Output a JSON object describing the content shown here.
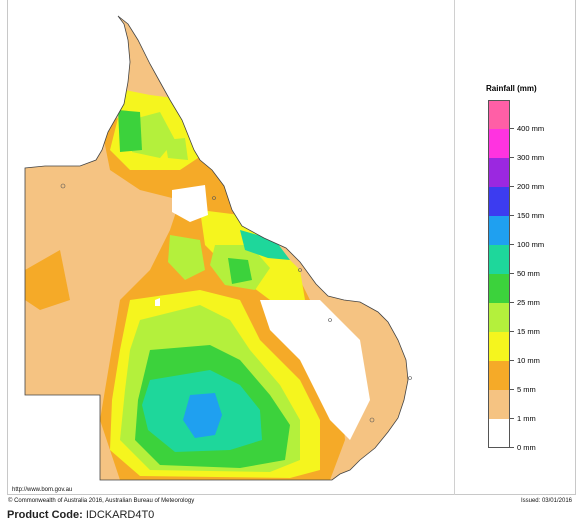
{
  "map": {
    "region": "Queensland",
    "colors": {
      "border": "#444444",
      "coast": "#555555"
    }
  },
  "legend": {
    "title": "Rainfall (mm)",
    "bands": [
      {
        "color": "#ff5fa6",
        "label": "400 mm"
      },
      {
        "color": "#ff33e0",
        "label": "300 mm"
      },
      {
        "color": "#9b28e0",
        "label": "200 mm"
      },
      {
        "color": "#3c3cf0",
        "label": "150 mm"
      },
      {
        "color": "#1fa0f0",
        "label": "100 mm"
      },
      {
        "color": "#1ed79b",
        "label": "50 mm"
      },
      {
        "color": "#3cd23c",
        "label": "25 mm"
      },
      {
        "color": "#b4f03c",
        "label": "15 mm"
      },
      {
        "color": "#f5f51e",
        "label": "10 mm"
      },
      {
        "color": "#f5aa28",
        "label": "5 mm"
      },
      {
        "color": "#f5c382",
        "label": "1 mm"
      },
      {
        "color": "#ffffff",
        "label": "0 mm"
      }
    ]
  },
  "footer": {
    "url": "http://www.bom.gov.au",
    "copyright": "© Commonwealth of Australia 2016, Australian Bureau of Meteorology",
    "issued": "Issued: 03/01/2016",
    "product_label": "Product Code:",
    "product_code": "IDCKARD4T0"
  }
}
